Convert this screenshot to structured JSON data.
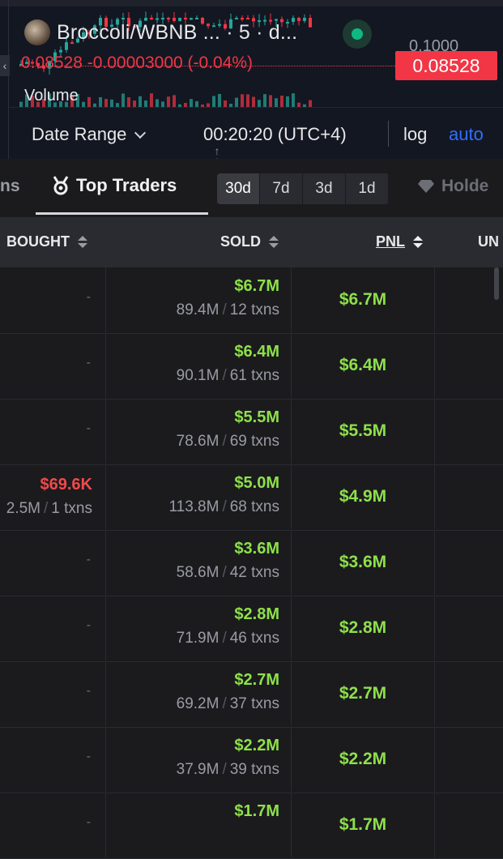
{
  "chart": {
    "pair": "Broccoli/WBNB ... · 5 · d...",
    "ohlc": "0.08528 -0.00003000 (-0.04%)",
    "current_price": "0.08528",
    "axis_label": "0.1000",
    "volume_label": "Volume",
    "colors": {
      "up": "#26a69a",
      "down": "#f23645",
      "accent": "#2f6fff"
    }
  },
  "chart_toolbar": {
    "date_range": "Date Range",
    "clock": "00:20:20 (UTC+4)",
    "log": "log",
    "auto": "auto"
  },
  "tabs": {
    "partial_left": "ns",
    "top_traders": "Top Traders",
    "periods": [
      "30d",
      "7d",
      "3d",
      "1d"
    ],
    "active_period": "30d",
    "holders_partial": "Holde"
  },
  "table": {
    "headers": {
      "bought": "BOUGHT",
      "sold": "SOLD",
      "pnl": "PNL",
      "unrealized_partial": "UN"
    },
    "rows": [
      {
        "bought_usd": "-",
        "bought_amount": "",
        "bought_txns": "",
        "sold_usd": "$6.7M",
        "sold_amount": "89.4M",
        "sold_txns": "12 txns",
        "pnl": "$6.7M"
      },
      {
        "bought_usd": "-",
        "bought_amount": "",
        "bought_txns": "",
        "sold_usd": "$6.4M",
        "sold_amount": "90.1M",
        "sold_txns": "61 txns",
        "pnl": "$6.4M"
      },
      {
        "bought_usd": "-",
        "bought_amount": "",
        "bought_txns": "",
        "sold_usd": "$5.5M",
        "sold_amount": "78.6M",
        "sold_txns": "69 txns",
        "pnl": "$5.5M"
      },
      {
        "bought_usd": "$69.6K",
        "bought_amount": "2.5M",
        "bought_txns": "1 txns",
        "sold_usd": "$5.0M",
        "sold_amount": "113.8M",
        "sold_txns": "68 txns",
        "pnl": "$4.9M"
      },
      {
        "bought_usd": "-",
        "bought_amount": "",
        "bought_txns": "",
        "sold_usd": "$3.6M",
        "sold_amount": "58.6M",
        "sold_txns": "42 txns",
        "pnl": "$3.6M"
      },
      {
        "bought_usd": "-",
        "bought_amount": "",
        "bought_txns": "",
        "sold_usd": "$2.8M",
        "sold_amount": "71.9M",
        "sold_txns": "46 txns",
        "pnl": "$2.8M"
      },
      {
        "bought_usd": "-",
        "bought_amount": "",
        "bought_txns": "",
        "sold_usd": "$2.7M",
        "sold_amount": "69.2M",
        "sold_txns": "37 txns",
        "pnl": "$2.7M"
      },
      {
        "bought_usd": "-",
        "bought_amount": "",
        "bought_txns": "",
        "sold_usd": "$2.2M",
        "sold_amount": "37.9M",
        "sold_txns": "39 txns",
        "pnl": "$2.2M"
      },
      {
        "bought_usd": "-",
        "bought_amount": "",
        "bought_txns": "",
        "sold_usd": "$1.7M",
        "sold_amount": "",
        "sold_txns": "",
        "pnl": "$1.7M"
      }
    ]
  }
}
